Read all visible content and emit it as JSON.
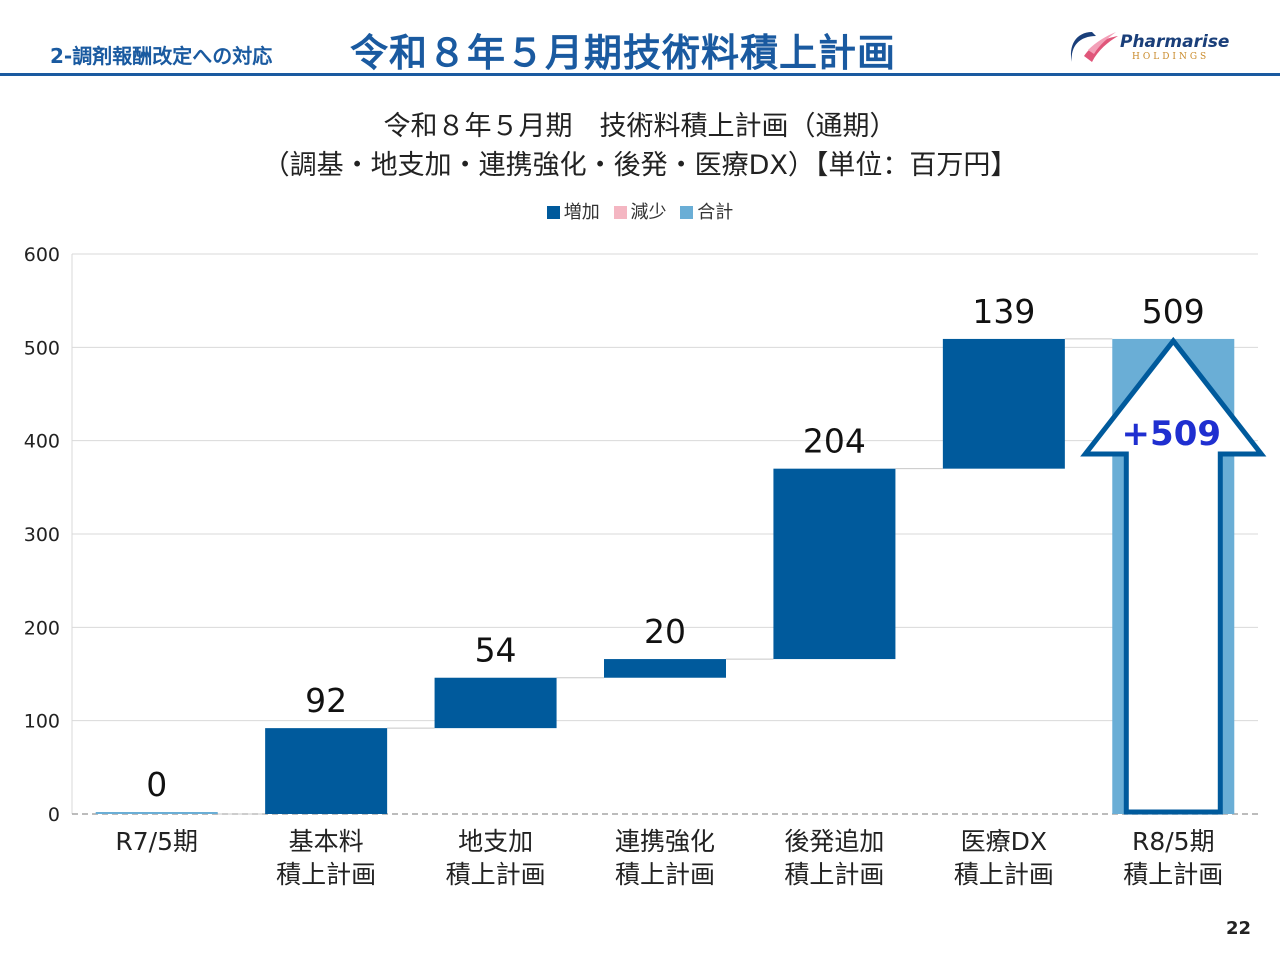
{
  "header": {
    "section_label": "2-調剤報酬改定への対応",
    "title": "令和８年５月期技術料積上計画"
  },
  "logo": {
    "name": "Pharmarise",
    "sub": "HOLDINGS"
  },
  "page_number": "22",
  "colors": {
    "increase": "#005a9c",
    "decrease": "#f4b6c2",
    "total": "#6aaed6",
    "brand": "#1a5aa0"
  },
  "chart_data": {
    "type": "waterfall",
    "title": "令和８年５月期　技術料積上計画（通期）",
    "subtitle": "（調基・地支加・連携強化・後発・医療DX）【単位：百万円】",
    "legend": [
      {
        "label": "増加",
        "color": "#005a9c"
      },
      {
        "label": "減少",
        "color": "#f4b6c2"
      },
      {
        "label": "合計",
        "color": "#6aaed6"
      }
    ],
    "legend_position": "top",
    "ylim": [
      0,
      600
    ],
    "yticks": [
      0,
      100,
      200,
      300,
      400,
      500,
      600
    ],
    "grid": true,
    "categories": [
      [
        "R7/5期"
      ],
      [
        "基本料",
        "積上計画"
      ],
      [
        "地支加",
        "積上計画"
      ],
      [
        "連携強化",
        "積上計画"
      ],
      [
        "後発追加",
        "積上計画"
      ],
      [
        "医療DX",
        "積上計画"
      ],
      [
        "R8/5期",
        "積上計画"
      ]
    ],
    "bars": [
      {
        "kind": "total",
        "start": 0,
        "value": 0,
        "label": "0"
      },
      {
        "kind": "increase",
        "start": 0,
        "value": 92,
        "label": "92"
      },
      {
        "kind": "increase",
        "start": 92,
        "value": 54,
        "label": "54"
      },
      {
        "kind": "increase",
        "start": 146,
        "value": 20,
        "label": "20"
      },
      {
        "kind": "increase",
        "start": 166,
        "value": 204,
        "label": "204"
      },
      {
        "kind": "increase",
        "start": 370,
        "value": 139,
        "label": "139"
      },
      {
        "kind": "total",
        "start": 0,
        "value": 509,
        "label": "509"
      }
    ],
    "annotation": {
      "text": "+509",
      "target_bar": 6
    }
  }
}
